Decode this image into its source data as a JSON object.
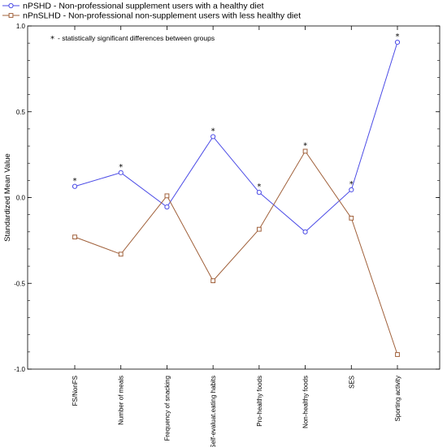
{
  "chart_data": {
    "type": "line",
    "categories": [
      "FS/NonFS",
      "Number of meals",
      "Frequency of snacking",
      "Self-evaluat.eating habits",
      "Pro-healthy foods",
      "Non-healthy foods",
      "SES",
      "Sporting activity"
    ],
    "series": [
      {
        "name": "nPSHD - Non-professional supplement users with a healthy diet",
        "color": "#4b4be6",
        "marker": "circle",
        "values": [
          0.065,
          0.145,
          -0.055,
          0.355,
          0.03,
          -0.2,
          0.045,
          0.905
        ]
      },
      {
        "name": "nPnSLHD - Non-professional non-supplement users with less healthy diet",
        "color": "#a0603a",
        "marker": "square",
        "values": [
          -0.23,
          -0.33,
          0.01,
          -0.485,
          -0.185,
          0.27,
          -0.12,
          -0.915
        ]
      }
    ],
    "significant": [
      true,
      true,
      false,
      true,
      true,
      true,
      true,
      true
    ],
    "star_symbol": "*",
    "annotation": "- statistically significant differences between groups",
    "ylabel": "Standardized Mean Value",
    "xlabel": "",
    "ylim": [
      -1.0,
      1.0
    ],
    "yticks": [
      -1.0,
      -0.5,
      0.0,
      0.5,
      1.0
    ],
    "ytick_labels": [
      "-1.0",
      "-0.5",
      "0.0",
      "0.5",
      "1.0"
    ],
    "legend_position": "top-left",
    "grid": false
  }
}
